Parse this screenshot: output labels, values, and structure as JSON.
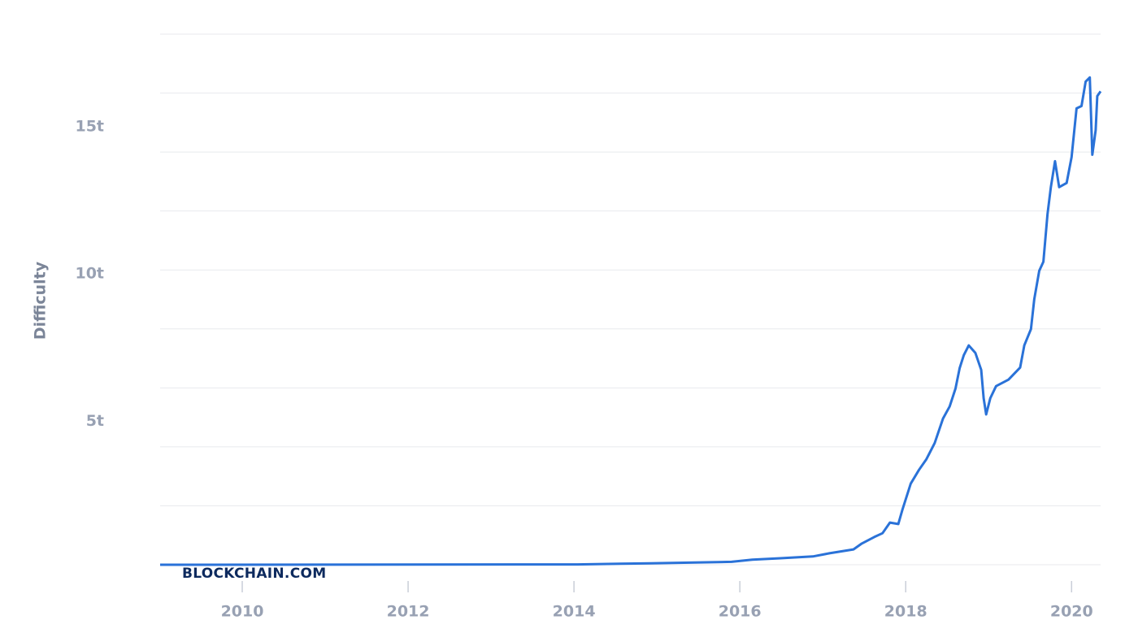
{
  "chart_data": {
    "type": "line",
    "y_label": "Difficulty",
    "watermark": "BLOCKCHAIN.COM",
    "color": "#2a72d8",
    "xlim": [
      2009.01,
      2020.35
    ],
    "xticks": [
      2010,
      2012,
      2014,
      2016,
      2018,
      2020
    ],
    "ylim": [
      0,
      18
    ],
    "yticks": [
      {
        "value": 5,
        "label": "5t"
      },
      {
        "value": 10,
        "label": "10t"
      },
      {
        "value": 15,
        "label": "15t"
      }
    ],
    "ygrid": [
      0,
      2,
      4,
      6,
      8,
      10,
      12,
      14,
      16,
      18
    ],
    "x": [
      2009.01,
      2014.04,
      2014.92,
      2015.9,
      2016.15,
      2016.49,
      2016.88,
      2017.08,
      2017.37,
      2017.47,
      2017.62,
      2017.72,
      2017.81,
      2017.91,
      2017.96,
      2018.06,
      2018.16,
      2018.25,
      2018.35,
      2018.45,
      2018.53,
      2018.6,
      2018.65,
      2018.7,
      2018.76,
      2018.84,
      2018.91,
      2018.94,
      2018.97,
      2019.02,
      2019.09,
      2019.24,
      2019.38,
      2019.43,
      2019.51,
      2019.55,
      2019.61,
      2019.66,
      2019.71,
      2019.75,
      2019.8,
      2019.85,
      2019.94,
      2020.0,
      2020.06,
      2020.12,
      2020.17,
      2020.22,
      2020.25,
      2020.29,
      2020.31,
      2020.35
    ],
    "values": [
      0,
      0.01,
      0.05,
      0.1,
      0.17,
      0.22,
      0.28,
      0.39,
      0.52,
      0.72,
      0.94,
      1.07,
      1.43,
      1.38,
      1.87,
      2.75,
      3.22,
      3.58,
      4.13,
      4.96,
      5.37,
      5.98,
      6.67,
      7.11,
      7.44,
      7.19,
      6.61,
      5.65,
      5.1,
      5.65,
      6.06,
      6.28,
      6.69,
      7.44,
      7.99,
      9.01,
      9.97,
      10.28,
      11.9,
      12.81,
      13.69,
      12.81,
      12.95,
      13.83,
      15.48,
      15.56,
      16.39,
      16.53,
      13.91,
      14.74,
      15.9,
      16.06
    ]
  }
}
